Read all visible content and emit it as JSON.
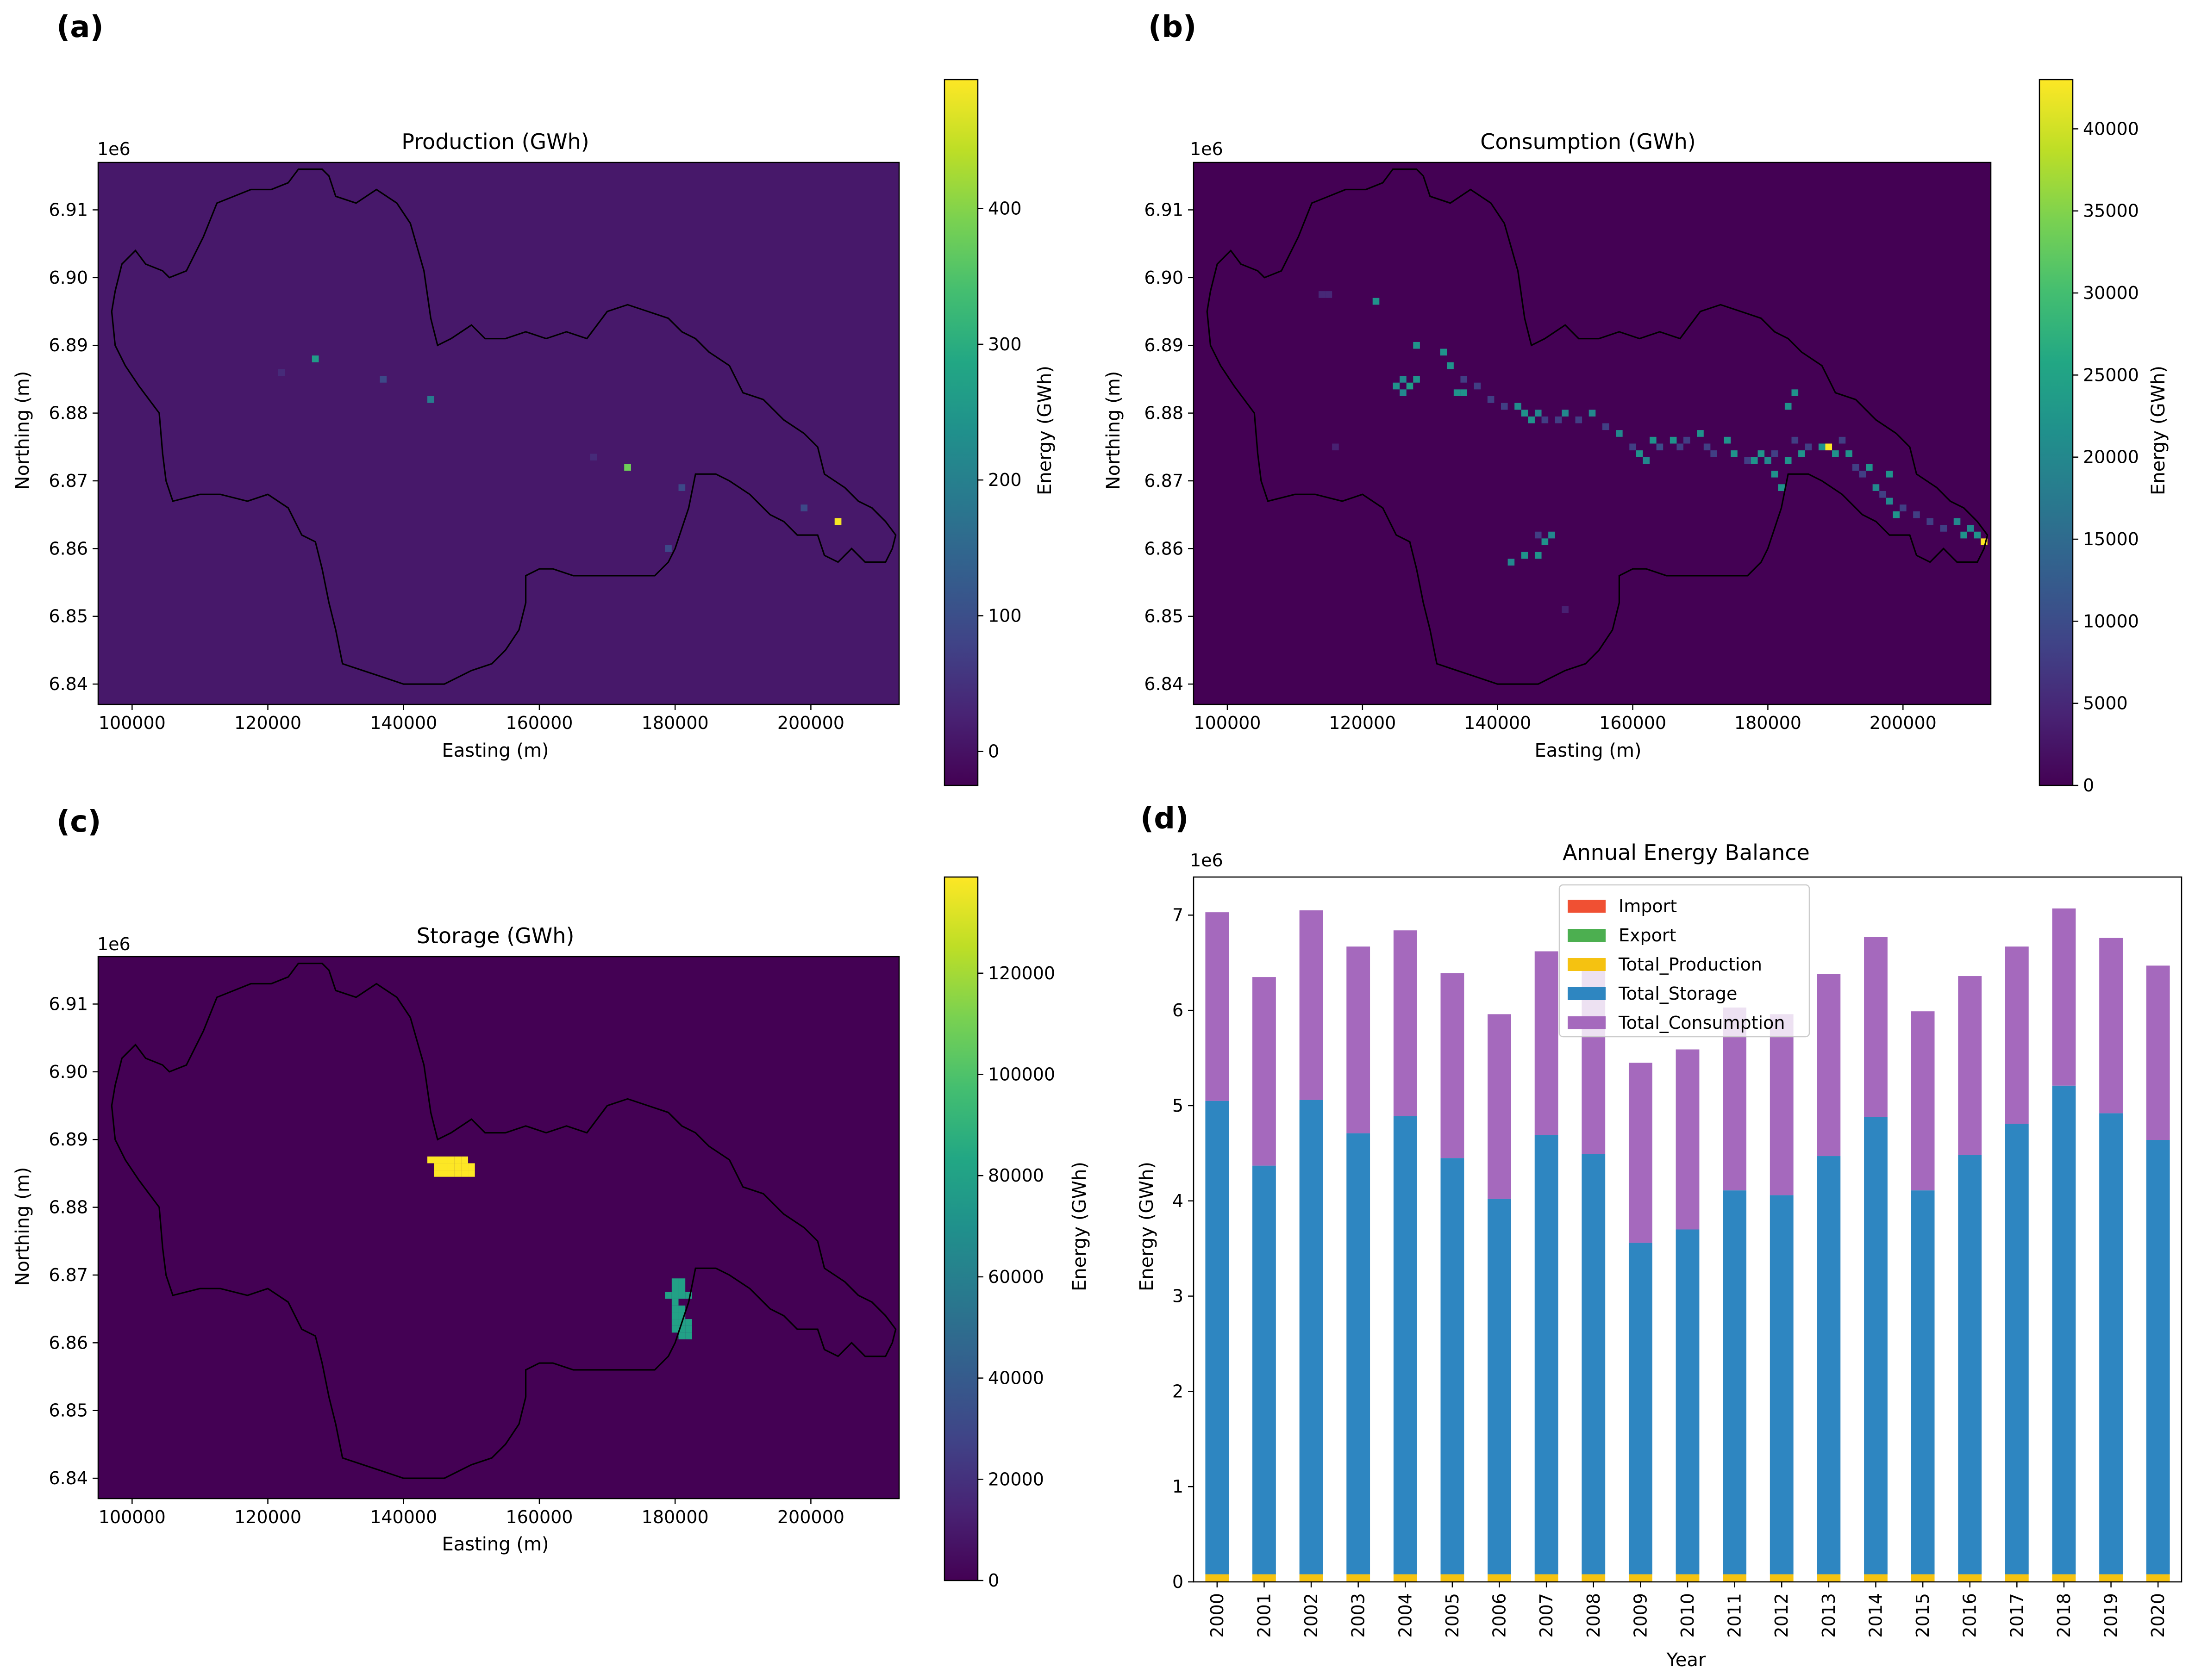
{
  "panel_labels": [
    "(a)",
    "(b)",
    "(c)",
    "(d)"
  ],
  "chart_data": [
    {
      "type": "heatmap",
      "panel": "(a)",
      "title": "Production (GWh)",
      "xlabel": "Easting (m)",
      "ylabel": "Northing (m)",
      "y_offset_label": "1e6",
      "xlim": [
        95000,
        213000
      ],
      "ylim": [
        6.837,
        6.917
      ],
      "xticks": [
        100000,
        120000,
        140000,
        160000,
        180000,
        200000
      ],
      "xtick_labels": [
        "100000",
        "120000",
        "140000",
        "160000",
        "180000",
        "200000"
      ],
      "yticks": [
        6.84,
        6.85,
        6.86,
        6.87,
        6.88,
        6.89,
        6.9,
        6.91
      ],
      "ytick_labels": [
        "6.84",
        "6.85",
        "6.86",
        "6.87",
        "6.88",
        "6.89",
        "6.90",
        "6.91"
      ],
      "colorbar": {
        "label": "Energy (GWh)",
        "colormap": "viridis",
        "range": [
          -25,
          495
        ],
        "ticks": [
          0,
          100,
          200,
          300,
          400
        ],
        "tick_labels": [
          "0",
          "100",
          "200",
          "300",
          "400"
        ]
      },
      "background_value": 10,
      "cells": [
        {
          "x": 122000,
          "y": 6.886,
          "v": 40
        },
        {
          "x": 127000,
          "y": 6.888,
          "v": 260
        },
        {
          "x": 137000,
          "y": 6.885,
          "v": 90
        },
        {
          "x": 144000,
          "y": 6.882,
          "v": 190
        },
        {
          "x": 168000,
          "y": 6.8735,
          "v": 40
        },
        {
          "x": 173000,
          "y": 6.872,
          "v": 380
        },
        {
          "x": 181000,
          "y": 6.869,
          "v": 90
        },
        {
          "x": 179000,
          "y": 6.86,
          "v": 90
        },
        {
          "x": 199000,
          "y": 6.866,
          "v": 90
        },
        {
          "x": 204000,
          "y": 6.864,
          "v": 490
        }
      ]
    },
    {
      "type": "heatmap",
      "panel": "(b)",
      "title": "Consumption (GWh)",
      "xlabel": "Easting (m)",
      "ylabel": "Northing (m)",
      "y_offset_label": "1e6",
      "xlim": [
        95000,
        213000
      ],
      "ylim": [
        6.837,
        6.917
      ],
      "xticks": [
        100000,
        120000,
        140000,
        160000,
        180000,
        200000
      ],
      "xtick_labels": [
        "100000",
        "120000",
        "140000",
        "160000",
        "180000",
        "200000"
      ],
      "yticks": [
        6.84,
        6.85,
        6.86,
        6.87,
        6.88,
        6.89,
        6.9,
        6.91
      ],
      "ytick_labels": [
        "6.84",
        "6.85",
        "6.86",
        "6.87",
        "6.88",
        "6.89",
        "6.90",
        "6.91"
      ],
      "colorbar": {
        "label": "Energy (GWh)",
        "colormap": "viridis",
        "range": [
          0,
          43000
        ],
        "ticks": [
          0,
          5000,
          10000,
          15000,
          20000,
          25000,
          30000,
          35000,
          40000
        ],
        "tick_labels": [
          "0",
          "5000",
          "10000",
          "15000",
          "20000",
          "25000",
          "30000",
          "35000",
          "40000"
        ]
      },
      "background_value": 0,
      "cells": [
        {
          "x": 114000,
          "y": 6.8975,
          "v": 5000
        },
        {
          "x": 115000,
          "y": 6.8975,
          "v": 5000
        },
        {
          "x": 122000,
          "y": 6.8965,
          "v": 22000
        },
        {
          "x": 116000,
          "y": 6.875,
          "v": 4000
        },
        {
          "x": 128000,
          "y": 6.89,
          "v": 22000
        },
        {
          "x": 126000,
          "y": 6.885,
          "v": 20000
        },
        {
          "x": 125000,
          "y": 6.884,
          "v": 22000
        },
        {
          "x": 127000,
          "y": 6.884,
          "v": 24000
        },
        {
          "x": 126000,
          "y": 6.883,
          "v": 20000
        },
        {
          "x": 128000,
          "y": 6.885,
          "v": 22000
        },
        {
          "x": 132000,
          "y": 6.889,
          "v": 22000
        },
        {
          "x": 133000,
          "y": 6.887,
          "v": 22000
        },
        {
          "x": 135000,
          "y": 6.885,
          "v": 8000
        },
        {
          "x": 137000,
          "y": 6.884,
          "v": 8000
        },
        {
          "x": 134000,
          "y": 6.883,
          "v": 22000
        },
        {
          "x": 135000,
          "y": 6.883,
          "v": 22000
        },
        {
          "x": 139000,
          "y": 6.882,
          "v": 8000
        },
        {
          "x": 141000,
          "y": 6.881,
          "v": 8000
        },
        {
          "x": 143000,
          "y": 6.881,
          "v": 21000
        },
        {
          "x": 144000,
          "y": 6.88,
          "v": 22000
        },
        {
          "x": 145000,
          "y": 6.879,
          "v": 22000
        },
        {
          "x": 146000,
          "y": 6.88,
          "v": 20000
        },
        {
          "x": 147000,
          "y": 6.879,
          "v": 8000
        },
        {
          "x": 149000,
          "y": 6.879,
          "v": 8000
        },
        {
          "x": 150000,
          "y": 6.88,
          "v": 20000
        },
        {
          "x": 152000,
          "y": 6.879,
          "v": 8000
        },
        {
          "x": 154000,
          "y": 6.88,
          "v": 20000
        },
        {
          "x": 156000,
          "y": 6.878,
          "v": 8000
        },
        {
          "x": 158000,
          "y": 6.877,
          "v": 20000
        },
        {
          "x": 160000,
          "y": 6.875,
          "v": 8000
        },
        {
          "x": 161000,
          "y": 6.874,
          "v": 22000
        },
        {
          "x": 162000,
          "y": 6.873,
          "v": 20000
        },
        {
          "x": 163000,
          "y": 6.876,
          "v": 22000
        },
        {
          "x": 164000,
          "y": 6.875,
          "v": 10000
        },
        {
          "x": 166000,
          "y": 6.876,
          "v": 22000
        },
        {
          "x": 167000,
          "y": 6.875,
          "v": 8000
        },
        {
          "x": 168000,
          "y": 6.876,
          "v": 8000
        },
        {
          "x": 170000,
          "y": 6.877,
          "v": 22000
        },
        {
          "x": 171000,
          "y": 6.875,
          "v": 8000
        },
        {
          "x": 172000,
          "y": 6.874,
          "v": 8000
        },
        {
          "x": 174000,
          "y": 6.876,
          "v": 22000
        },
        {
          "x": 175000,
          "y": 6.874,
          "v": 22000
        },
        {
          "x": 177000,
          "y": 6.873,
          "v": 8000
        },
        {
          "x": 178000,
          "y": 6.873,
          "v": 22000
        },
        {
          "x": 179000,
          "y": 6.874,
          "v": 22000
        },
        {
          "x": 180000,
          "y": 6.873,
          "v": 20000
        },
        {
          "x": 181000,
          "y": 6.874,
          "v": 8000
        },
        {
          "x": 181000,
          "y": 6.871,
          "v": 22000
        },
        {
          "x": 182000,
          "y": 6.869,
          "v": 22000
        },
        {
          "x": 183000,
          "y": 6.873,
          "v": 22000
        },
        {
          "x": 184000,
          "y": 6.876,
          "v": 8000
        },
        {
          "x": 185000,
          "y": 6.874,
          "v": 22000
        },
        {
          "x": 186000,
          "y": 6.875,
          "v": 8000
        },
        {
          "x": 183000,
          "y": 6.881,
          "v": 22000
        },
        {
          "x": 184000,
          "y": 6.883,
          "v": 22000
        },
        {
          "x": 188000,
          "y": 6.875,
          "v": 22000
        },
        {
          "x": 189000,
          "y": 6.875,
          "v": 43000
        },
        {
          "x": 190000,
          "y": 6.874,
          "v": 22000
        },
        {
          "x": 191000,
          "y": 6.876,
          "v": 8000
        },
        {
          "x": 192000,
          "y": 6.874,
          "v": 22000
        },
        {
          "x": 193000,
          "y": 6.872,
          "v": 8000
        },
        {
          "x": 194000,
          "y": 6.871,
          "v": 8000
        },
        {
          "x": 195000,
          "y": 6.872,
          "v": 22000
        },
        {
          "x": 196000,
          "y": 6.869,
          "v": 20000
        },
        {
          "x": 197000,
          "y": 6.868,
          "v": 8000
        },
        {
          "x": 198000,
          "y": 6.871,
          "v": 22000
        },
        {
          "x": 198000,
          "y": 6.867,
          "v": 20000
        },
        {
          "x": 199000,
          "y": 6.865,
          "v": 22000
        },
        {
          "x": 200000,
          "y": 6.866,
          "v": 8000
        },
        {
          "x": 202000,
          "y": 6.865,
          "v": 8000
        },
        {
          "x": 204000,
          "y": 6.864,
          "v": 8000
        },
        {
          "x": 206000,
          "y": 6.863,
          "v": 8000
        },
        {
          "x": 208000,
          "y": 6.864,
          "v": 20000
        },
        {
          "x": 209000,
          "y": 6.862,
          "v": 22000
        },
        {
          "x": 210000,
          "y": 6.863,
          "v": 20000
        },
        {
          "x": 211000,
          "y": 6.862,
          "v": 22000
        },
        {
          "x": 212000,
          "y": 6.861,
          "v": 43000
        },
        {
          "x": 146000,
          "y": 6.862,
          "v": 8000
        },
        {
          "x": 147000,
          "y": 6.861,
          "v": 22000
        },
        {
          "x": 148000,
          "y": 6.862,
          "v": 20000
        },
        {
          "x": 144000,
          "y": 6.859,
          "v": 22000
        },
        {
          "x": 146000,
          "y": 6.859,
          "v": 22000
        },
        {
          "x": 142000,
          "y": 6.858,
          "v": 20000
        },
        {
          "x": 150000,
          "y": 6.851,
          "v": 4000
        }
      ]
    },
    {
      "type": "heatmap",
      "panel": "(c)",
      "title": "Storage (GWh)",
      "xlabel": "Easting (m)",
      "ylabel": "Northing (m)",
      "y_offset_label": "1e6",
      "xlim": [
        95000,
        213000
      ],
      "ylim": [
        6.837,
        6.917
      ],
      "xticks": [
        100000,
        120000,
        140000,
        160000,
        180000,
        200000
      ],
      "xtick_labels": [
        "100000",
        "120000",
        "140000",
        "160000",
        "180000",
        "200000"
      ],
      "yticks": [
        6.84,
        6.85,
        6.86,
        6.87,
        6.88,
        6.89,
        6.9,
        6.91
      ],
      "ytick_labels": [
        "6.84",
        "6.85",
        "6.86",
        "6.87",
        "6.88",
        "6.89",
        "6.90",
        "6.91"
      ],
      "colorbar": {
        "label": "Energy (GWh)",
        "colormap": "viridis",
        "range": [
          0,
          139000
        ],
        "ticks": [
          0,
          20000,
          40000,
          60000,
          80000,
          100000,
          120000
        ],
        "tick_labels": [
          "0",
          "20000",
          "40000",
          "60000",
          "80000",
          "100000",
          "120000"
        ]
      },
      "background_value": 0,
      "cells": [
        {
          "x": 144000,
          "y": 6.887,
          "v": 139000
        },
        {
          "x": 145000,
          "y": 6.887,
          "v": 139000
        },
        {
          "x": 146000,
          "y": 6.887,
          "v": 139000
        },
        {
          "x": 147000,
          "y": 6.887,
          "v": 139000
        },
        {
          "x": 148000,
          "y": 6.887,
          "v": 139000
        },
        {
          "x": 149000,
          "y": 6.887,
          "v": 139000
        },
        {
          "x": 145000,
          "y": 6.886,
          "v": 139000
        },
        {
          "x": 146000,
          "y": 6.886,
          "v": 139000
        },
        {
          "x": 147000,
          "y": 6.886,
          "v": 139000
        },
        {
          "x": 148000,
          "y": 6.886,
          "v": 139000
        },
        {
          "x": 149000,
          "y": 6.886,
          "v": 139000
        },
        {
          "x": 150000,
          "y": 6.886,
          "v": 139000
        },
        {
          "x": 145000,
          "y": 6.885,
          "v": 139000
        },
        {
          "x": 146000,
          "y": 6.885,
          "v": 139000
        },
        {
          "x": 147000,
          "y": 6.885,
          "v": 139000
        },
        {
          "x": 148000,
          "y": 6.885,
          "v": 139000
        },
        {
          "x": 149000,
          "y": 6.885,
          "v": 139000
        },
        {
          "x": 150000,
          "y": 6.885,
          "v": 139000
        },
        {
          "x": 180000,
          "y": 6.869,
          "v": 80000
        },
        {
          "x": 181000,
          "y": 6.869,
          "v": 80000
        },
        {
          "x": 180000,
          "y": 6.868,
          "v": 80000
        },
        {
          "x": 181000,
          "y": 6.868,
          "v": 80000
        },
        {
          "x": 179000,
          "y": 6.867,
          "v": 80000
        },
        {
          "x": 180000,
          "y": 6.867,
          "v": 80000
        },
        {
          "x": 181000,
          "y": 6.867,
          "v": 80000
        },
        {
          "x": 182000,
          "y": 6.867,
          "v": 80000
        },
        {
          "x": 180000,
          "y": 6.866,
          "v": 80000
        },
        {
          "x": 180000,
          "y": 6.865,
          "v": 80000
        },
        {
          "x": 181000,
          "y": 6.865,
          "v": 80000
        },
        {
          "x": 180000,
          "y": 6.864,
          "v": 80000
        },
        {
          "x": 181000,
          "y": 6.864,
          "v": 80000
        },
        {
          "x": 180000,
          "y": 6.863,
          "v": 80000
        },
        {
          "x": 181000,
          "y": 6.863,
          "v": 80000
        },
        {
          "x": 182000,
          "y": 6.863,
          "v": 80000
        },
        {
          "x": 180000,
          "y": 6.862,
          "v": 80000
        },
        {
          "x": 181000,
          "y": 6.862,
          "v": 80000
        },
        {
          "x": 182000,
          "y": 6.862,
          "v": 80000
        },
        {
          "x": 181000,
          "y": 6.861,
          "v": 80000
        },
        {
          "x": 182000,
          "y": 6.861,
          "v": 80000
        }
      ]
    },
    {
      "type": "bar",
      "stacked": true,
      "panel": "(d)",
      "title": "Annual Energy Balance",
      "xlabel": "Year",
      "ylabel": "Energy (GWh)",
      "y_offset_label": "1e6",
      "ylim": [
        0,
        7.4
      ],
      "yticks": [
        0,
        1,
        2,
        3,
        4,
        5,
        6,
        7
      ],
      "ytick_labels": [
        "0",
        "1",
        "2",
        "3",
        "4",
        "5",
        "6",
        "7"
      ],
      "legend_position": "top-center",
      "categories": [
        "2000",
        "2001",
        "2002",
        "2003",
        "2004",
        "2005",
        "2006",
        "2007",
        "2008",
        "2009",
        "2010",
        "2011",
        "2012",
        "2013",
        "2014",
        "2015",
        "2016",
        "2017",
        "2018",
        "2019",
        "2020"
      ],
      "series": [
        {
          "name": "Import",
          "color": "#f05033",
          "values": [
            0,
            0,
            0,
            0,
            0,
            0,
            0,
            0,
            0,
            0,
            0,
            0,
            0,
            0,
            0,
            0,
            0,
            0,
            0,
            0,
            0
          ]
        },
        {
          "name": "Export",
          "color": "#4caf50",
          "values": [
            0,
            0,
            0,
            0,
            0,
            0,
            0,
            0,
            0,
            0,
            0,
            0,
            0,
            0,
            0,
            0,
            0,
            0,
            0,
            0,
            0
          ]
        },
        {
          "name": "Total_Production",
          "color": "#f5c211",
          "values": [
            0.08,
            0.08,
            0.08,
            0.08,
            0.08,
            0.08,
            0.08,
            0.08,
            0.08,
            0.08,
            0.08,
            0.08,
            0.08,
            0.08,
            0.08,
            0.08,
            0.08,
            0.08,
            0.08,
            0.08,
            0.08
          ]
        },
        {
          "name": "Total_Storage",
          "color": "#2e86c1",
          "values": [
            4.97,
            4.29,
            4.98,
            4.63,
            4.81,
            4.37,
            3.94,
            4.61,
            4.41,
            3.48,
            3.62,
            4.03,
            3.98,
            4.39,
            4.8,
            4.03,
            4.4,
            4.73,
            5.13,
            4.84,
            4.56
          ]
        },
        {
          "name": "Total_Consumption",
          "color": "#a569bd",
          "values": [
            1.98,
            1.98,
            1.99,
            1.96,
            1.95,
            1.94,
            1.94,
            1.93,
            1.96,
            1.89,
            1.89,
            1.92,
            1.9,
            1.91,
            1.89,
            1.88,
            1.88,
            1.86,
            1.86,
            1.84,
            1.83
          ]
        }
      ]
    }
  ]
}
